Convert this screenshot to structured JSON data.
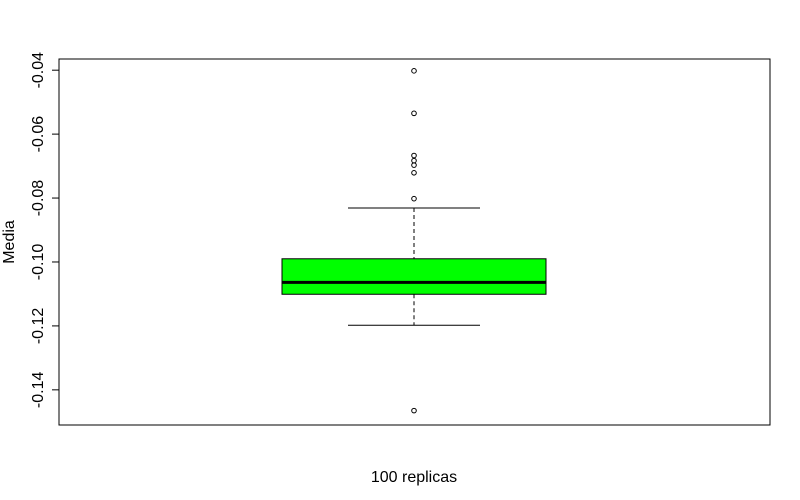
{
  "chart_data": {
    "type": "boxplot",
    "title": "",
    "xlabel": "100 replicas",
    "ylabel": "Media",
    "ylim": [
      -0.151,
      -0.0365
    ],
    "yticks": [
      -0.14,
      -0.12,
      -0.1,
      -0.08,
      -0.06,
      -0.04
    ],
    "ytick_labels": [
      "-0.14",
      "-0.12",
      "-0.10",
      "-0.08",
      "-0.06",
      "-0.04"
    ],
    "grid": false,
    "legend": "none",
    "box": {
      "q1": -0.1101,
      "median": -0.1064,
      "q3": -0.099,
      "whisker_low": -0.1198,
      "whisker_high": -0.0831
    },
    "outliers": [
      -0.0402,
      -0.0535,
      -0.0667,
      -0.0683,
      -0.0697,
      -0.0721,
      -0.0802,
      -0.1465
    ],
    "colors": {
      "box_fill": "#00ff00",
      "line": "#000000",
      "frame": "#000000"
    }
  }
}
